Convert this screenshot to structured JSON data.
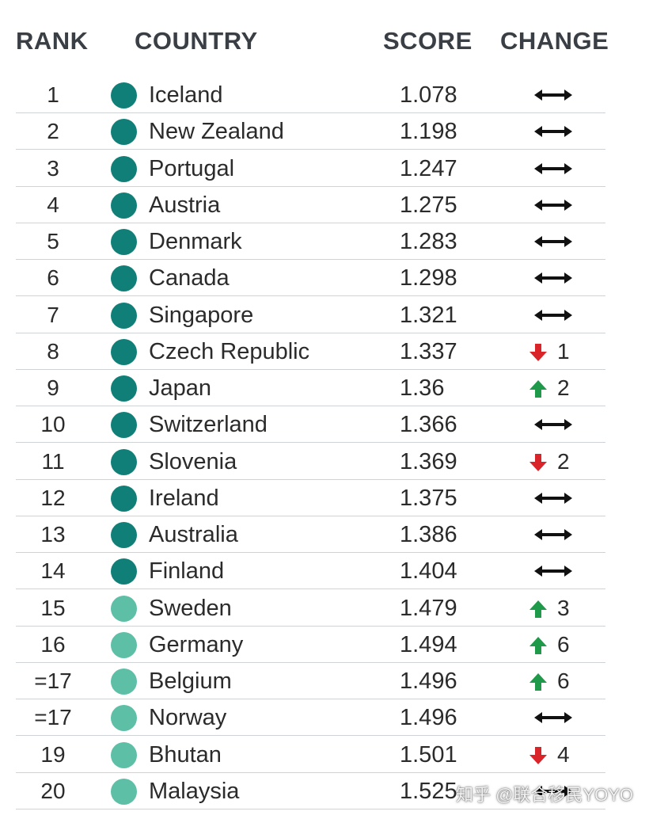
{
  "header": {
    "rank": "RANK",
    "country": "COUNTRY",
    "score": "SCORE",
    "change": "CHANGE"
  },
  "colors": {
    "dark_teal": "#0f7f78",
    "light_teal": "#5cbfa6",
    "up_green": "#1f9a4a",
    "down_red": "#d9252a",
    "text": "#2b2b2b",
    "rule": "#cfd3d6"
  },
  "chart_data": {
    "type": "table",
    "columns": [
      "RANK",
      "COUNTRY",
      "SCORE",
      "CHANGE"
    ],
    "rows": [
      {
        "rank": "1",
        "country": "Iceland",
        "score": "1.078",
        "tier": "dark",
        "change_dir": "none",
        "change": ""
      },
      {
        "rank": "2",
        "country": "New Zealand",
        "score": "1.198",
        "tier": "dark",
        "change_dir": "none",
        "change": ""
      },
      {
        "rank": "3",
        "country": "Portugal",
        "score": "1.247",
        "tier": "dark",
        "change_dir": "none",
        "change": ""
      },
      {
        "rank": "4",
        "country": "Austria",
        "score": "1.275",
        "tier": "dark",
        "change_dir": "none",
        "change": ""
      },
      {
        "rank": "5",
        "country": "Denmark",
        "score": "1.283",
        "tier": "dark",
        "change_dir": "none",
        "change": ""
      },
      {
        "rank": "6",
        "country": "Canada",
        "score": "1.298",
        "tier": "dark",
        "change_dir": "none",
        "change": ""
      },
      {
        "rank": "7",
        "country": "Singapore",
        "score": "1.321",
        "tier": "dark",
        "change_dir": "none",
        "change": ""
      },
      {
        "rank": "8",
        "country": "Czech Republic",
        "score": "1.337",
        "tier": "dark",
        "change_dir": "down",
        "change": "1"
      },
      {
        "rank": "9",
        "country": "Japan",
        "score": "1.36",
        "tier": "dark",
        "change_dir": "up",
        "change": "2"
      },
      {
        "rank": "10",
        "country": "Switzerland",
        "score": "1.366",
        "tier": "dark",
        "change_dir": "none",
        "change": ""
      },
      {
        "rank": "11",
        "country": "Slovenia",
        "score": "1.369",
        "tier": "dark",
        "change_dir": "down",
        "change": "2"
      },
      {
        "rank": "12",
        "country": "Ireland",
        "score": "1.375",
        "tier": "dark",
        "change_dir": "none",
        "change": ""
      },
      {
        "rank": "13",
        "country": "Australia",
        "score": "1.386",
        "tier": "dark",
        "change_dir": "none",
        "change": ""
      },
      {
        "rank": "14",
        "country": "Finland",
        "score": "1.404",
        "tier": "dark",
        "change_dir": "none",
        "change": ""
      },
      {
        "rank": "15",
        "country": "Sweden",
        "score": "1.479",
        "tier": "light",
        "change_dir": "up",
        "change": "3"
      },
      {
        "rank": "16",
        "country": "Germany",
        "score": "1.494",
        "tier": "light",
        "change_dir": "up",
        "change": "6"
      },
      {
        "rank": "=17",
        "country": "Belgium",
        "score": "1.496",
        "tier": "light",
        "change_dir": "up",
        "change": "6"
      },
      {
        "rank": "=17",
        "country": "Norway",
        "score": "1.496",
        "tier": "light",
        "change_dir": "none",
        "change": ""
      },
      {
        "rank": "19",
        "country": "Bhutan",
        "score": "1.501",
        "tier": "light",
        "change_dir": "down",
        "change": "4"
      },
      {
        "rank": "20",
        "country": "Malaysia",
        "score": "1.525",
        "tier": "light",
        "change_dir": "none",
        "change": ""
      }
    ]
  },
  "watermark": "知乎 @联合移民YOYO"
}
